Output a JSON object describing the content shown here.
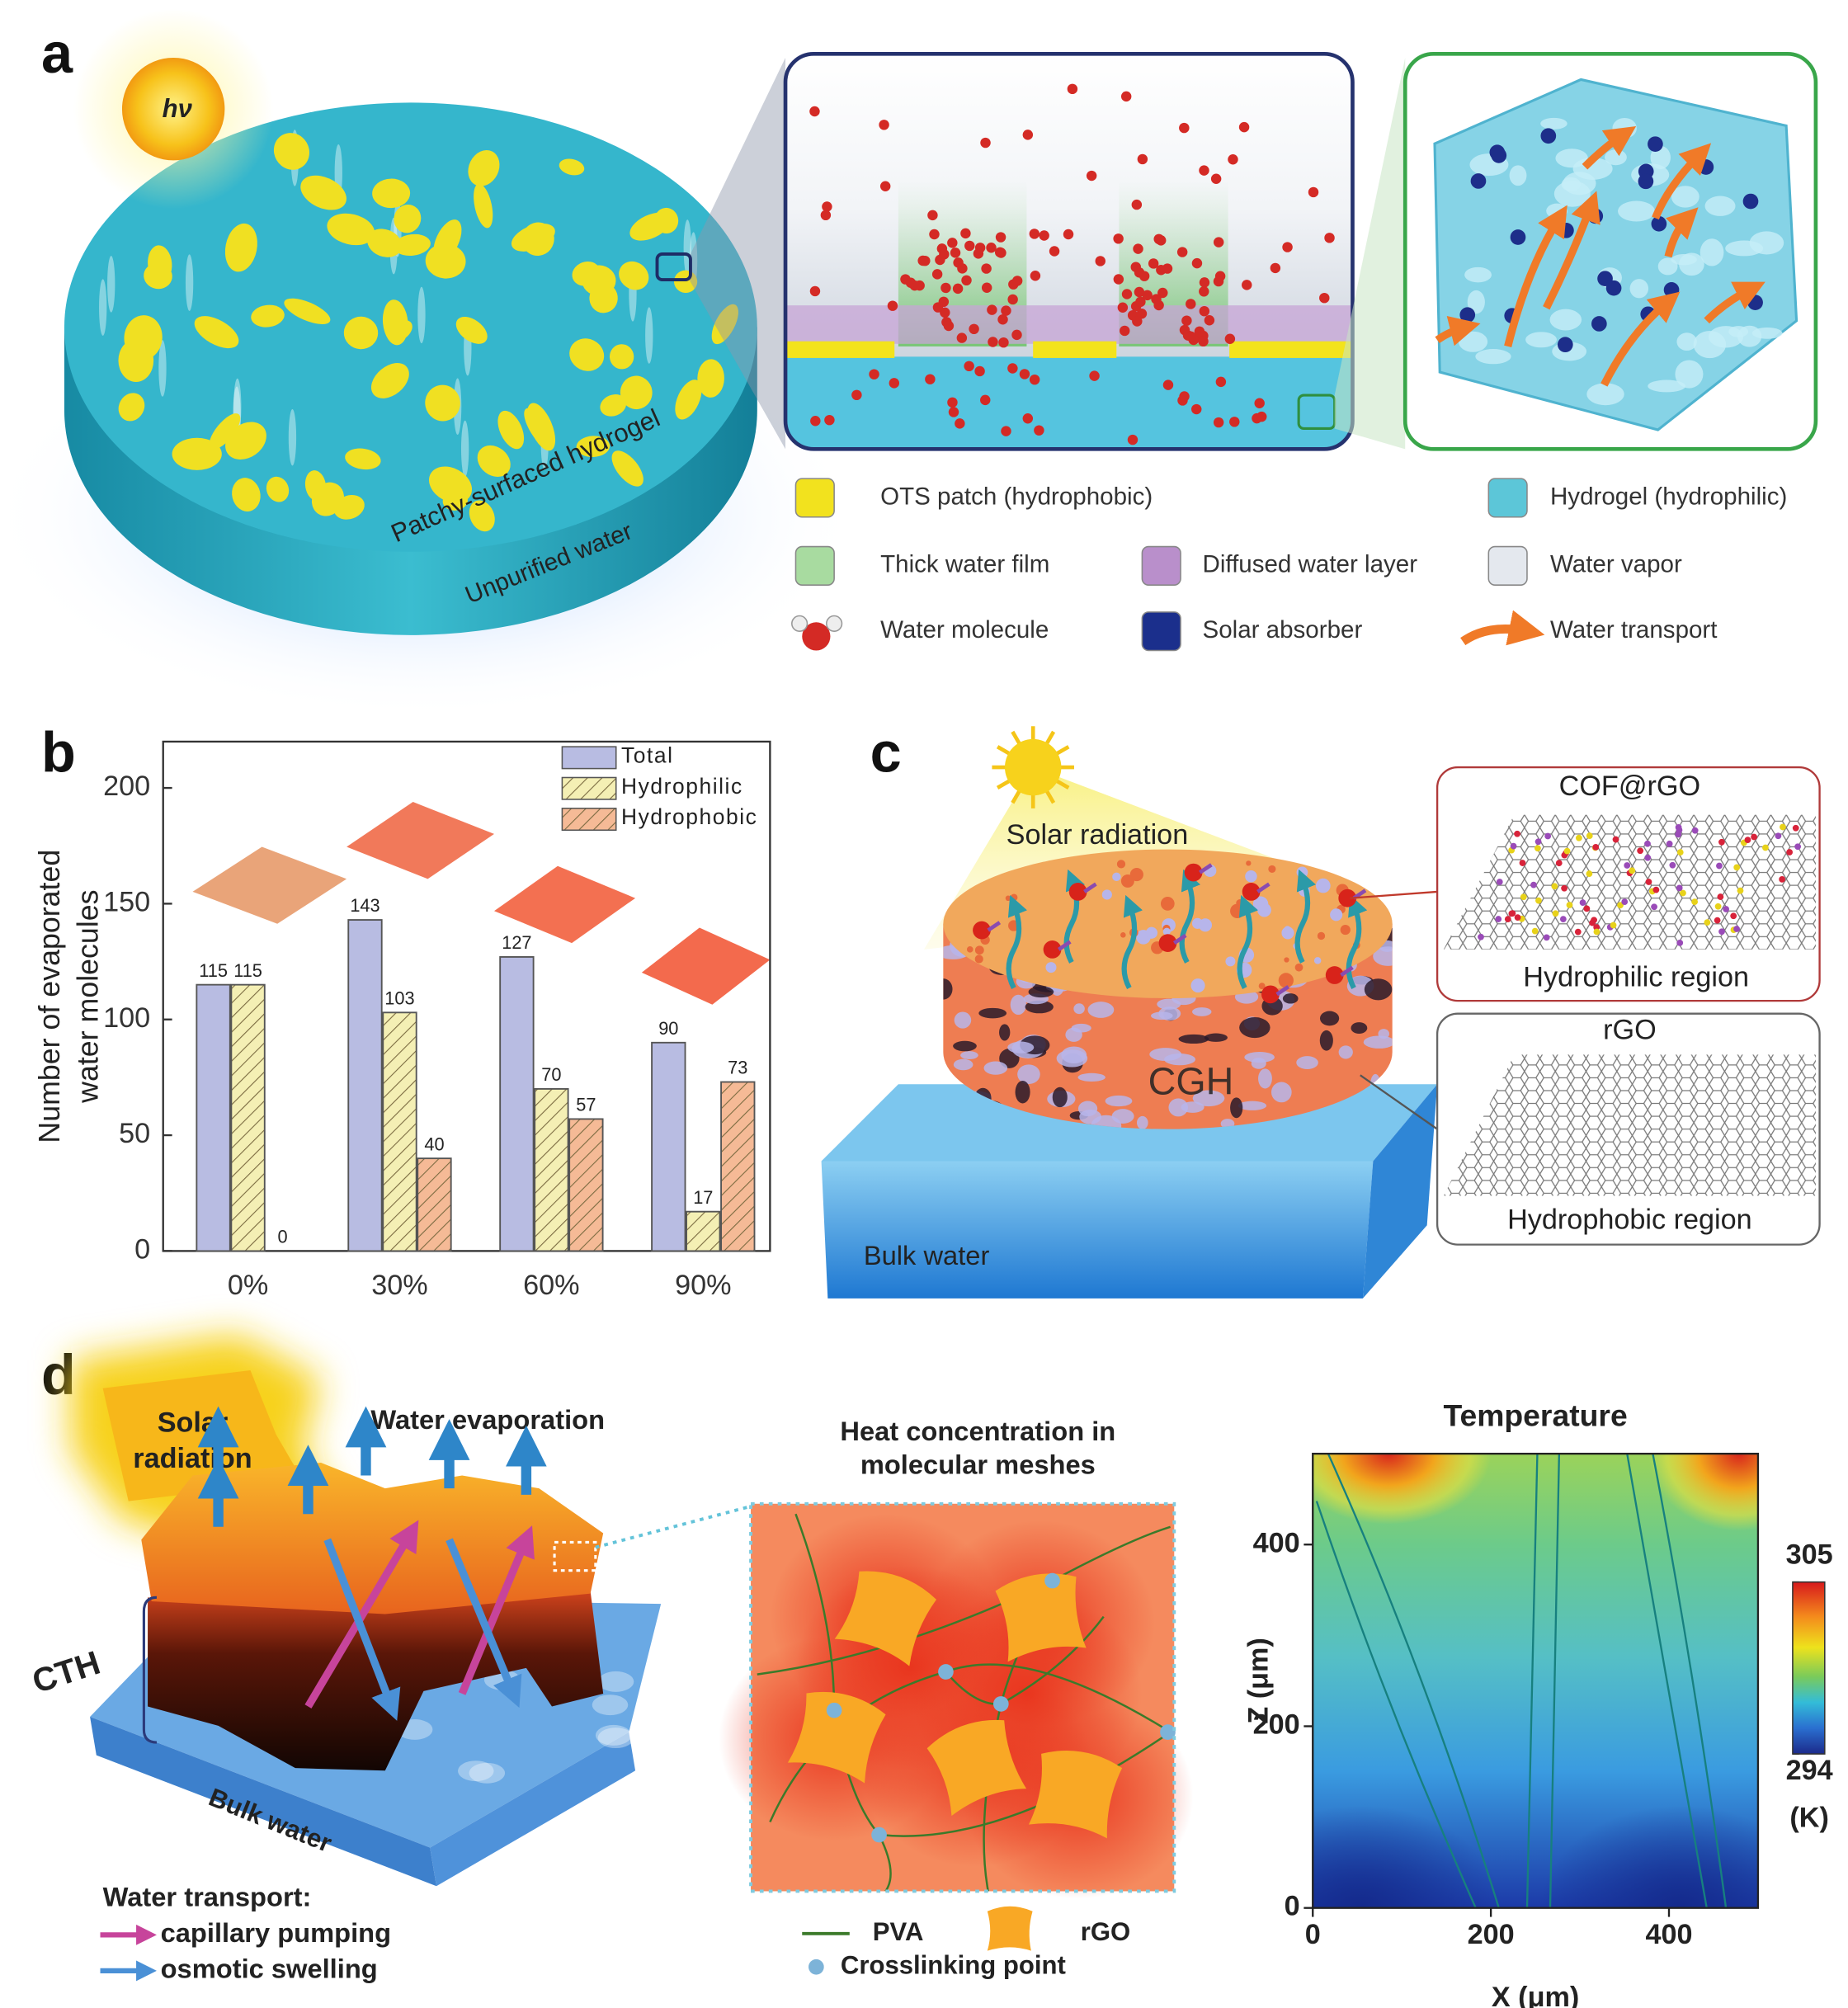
{
  "panel_labels": [
    "a",
    "b",
    "c",
    "d"
  ],
  "panel_a": {
    "sun_label": "hν",
    "hydrogel_label": "Patchy-surfaced hydrogel",
    "water_label": "Unpurified water",
    "legend": [
      "OTS patch (hydrophobic)",
      "Hydrogel (hydrophilic)",
      "Thick water film",
      "Diffused water layer",
      "Water vapor",
      "Water molecule",
      "Solar absorber",
      "Water transport"
    ]
  },
  "panel_c": {
    "sun_label": "Solar radiation",
    "sample_label": "CGH",
    "water_label": "Bulk water",
    "top_box": {
      "title": "COF@rGO",
      "caption": "Hydrophilic region"
    },
    "bottom_box": {
      "title": "rGO",
      "caption": "Hydrophobic region"
    }
  },
  "panel_d": {
    "sun_label": [
      "Solar",
      "radiation"
    ],
    "evaporation_label": "Water evaporation",
    "cth_label": "CTH",
    "water_label": "Bulk water",
    "transport_title": "Water transport:",
    "transport_legend": [
      "capillary pumping",
      "osmotic swelling"
    ],
    "mesh_title": [
      "Heat concentration in",
      "molecular meshes"
    ],
    "mesh_legend": [
      "PVA",
      "rGO",
      "Crosslinking point"
    ]
  },
  "chart_data": [
    {
      "type": "bar",
      "ylabel": [
        "Number of evaporated",
        "water molecules"
      ],
      "categories": [
        "0%",
        "30%",
        "60%",
        "90%"
      ],
      "series": [
        {
          "name": "Total",
          "color": "#b8bce2",
          "hatch": false,
          "values": [
            115,
            143,
            127,
            90
          ]
        },
        {
          "name": "Hydrophilic",
          "color": "#f4efb4",
          "hatch": true,
          "values": [
            115,
            103,
            70,
            17
          ]
        },
        {
          "name": "Hydrophobic",
          "color": "#f5ba96",
          "hatch": true,
          "values": [
            0,
            40,
            57,
            73
          ]
        }
      ],
      "ylim": [
        0,
        220
      ],
      "yticks": [
        0,
        50,
        100,
        150,
        200
      ],
      "legend": "upper right"
    },
    {
      "type": "heatmap",
      "title": "Temperature",
      "xlabel": "X (μm)",
      "ylabel": "Z (μm)",
      "xlim": [
        0,
        500
      ],
      "ylim": [
        0,
        500
      ],
      "xticks": [
        0,
        200,
        400
      ],
      "yticks": [
        0,
        200,
        400
      ],
      "clim": [
        294,
        305
      ],
      "cticks": [
        294,
        305
      ],
      "clabel": "(K)"
    }
  ]
}
